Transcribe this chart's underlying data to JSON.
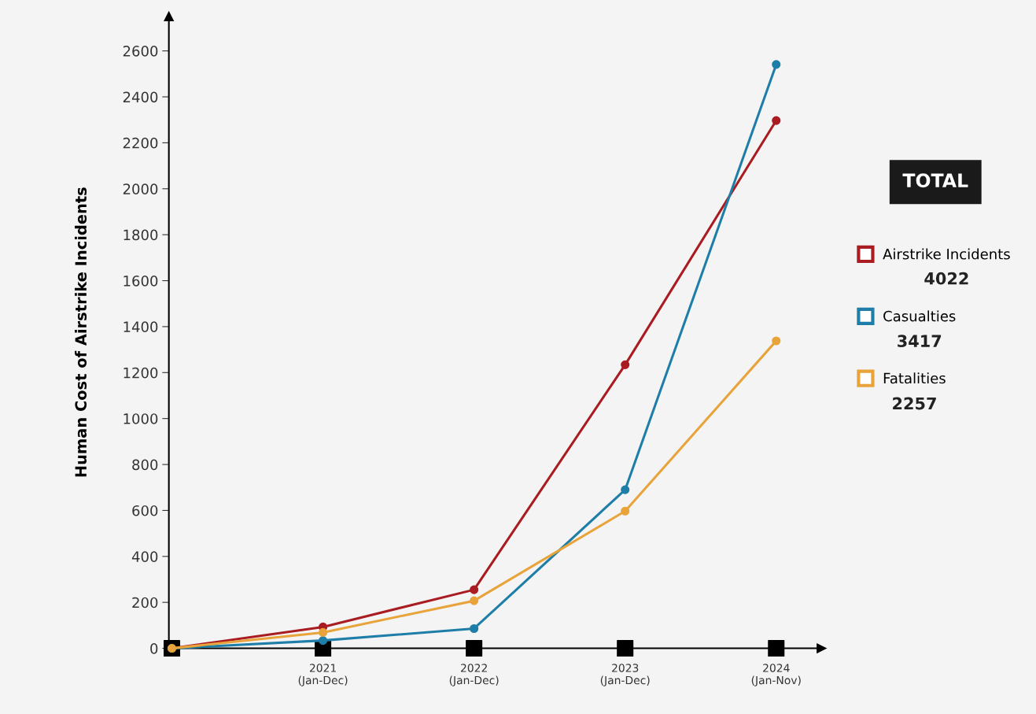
{
  "chart_data": {
    "type": "line",
    "ylabel": "Human Cost of Airstrike Incidents",
    "categories": [
      null,
      "2021\n(Jan-Dec)",
      "2022\n(Jan-Dec)",
      "2023\n(Jan-Dec)",
      "2024\n(Jan-Nov)"
    ],
    "series": [
      {
        "name": "Airstrike Incidents",
        "color": "#a81c22",
        "values": [
          0,
          93,
          255,
          1234,
          2297
        ]
      },
      {
        "name": "Casualties",
        "color": "#1f7ea8",
        "values": [
          0,
          34,
          86,
          690,
          2541
        ]
      },
      {
        "name": "Fatalities",
        "color": "#e8a33a",
        "values": [
          0,
          69,
          207,
          597,
          1338
        ]
      },
      {
        "type": "scatter",
        "marker": "square",
        "color": "#000000",
        "values": [
          0,
          0,
          0,
          0,
          0
        ]
      }
    ],
    "legend_title": "TOTAL",
    "annotations": [
      "4022",
      "3417",
      "2257"
    ],
    "ylim": [
      0,
      2750
    ],
    "yticks": [
      0,
      200,
      400,
      600,
      800,
      1000,
      1200,
      1400,
      1600,
      1800,
      2000,
      2200,
      2400,
      2600
    ],
    "grid": false,
    "legend": "right",
    "marker": "circle",
    "line_style": "solid"
  }
}
